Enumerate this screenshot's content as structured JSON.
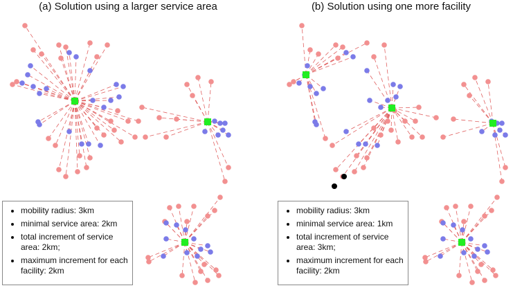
{
  "panels": [
    {
      "title": "(a) Solution using a larger service area",
      "legend": [
        "mobility radius: 3km",
        "minimal service area: 2km",
        "total increment of service area: 2km;",
        "maximum increment for each facility: 2km"
      ]
    },
    {
      "title": "(b) Solution using one more facility",
      "legend": [
        "mobility radius: 3km",
        "minimal service area: 1km",
        "total increment of service area: 3km;",
        "maximum increment for each facility: 2km"
      ]
    }
  ]
}
